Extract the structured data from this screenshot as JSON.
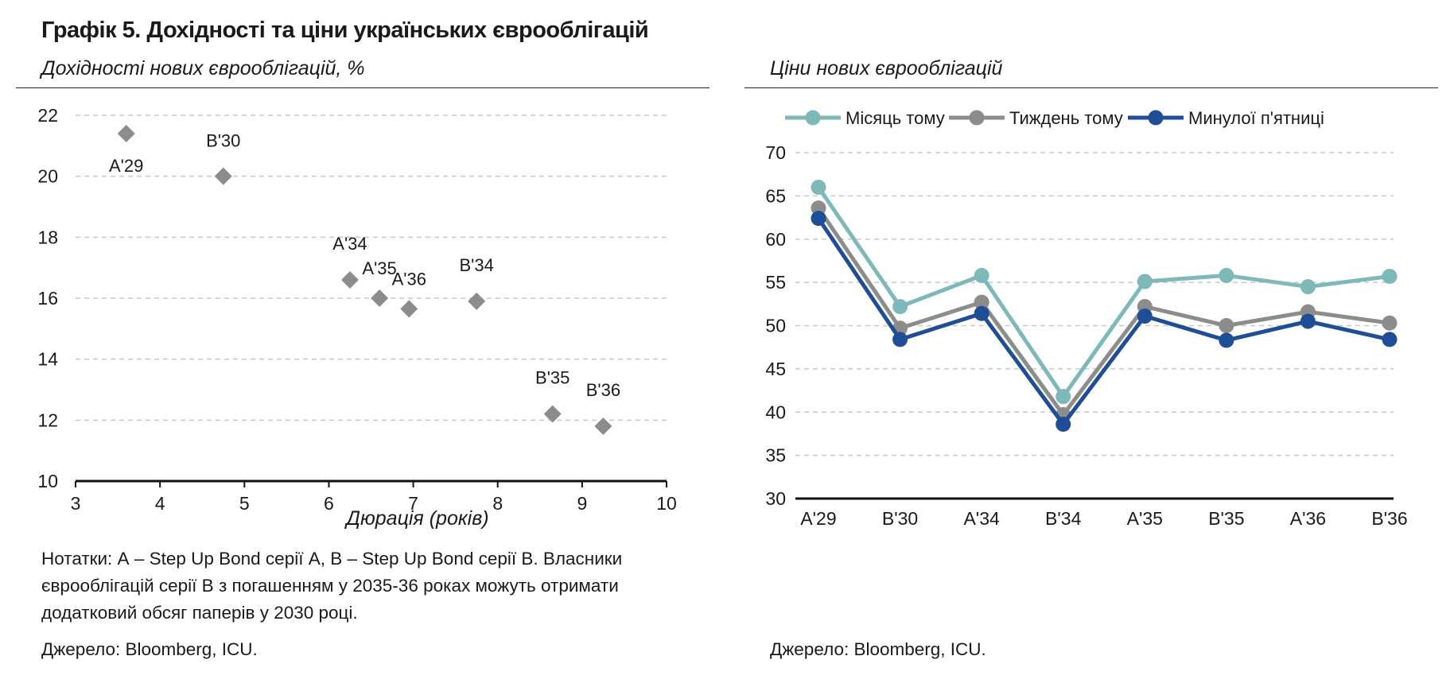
{
  "header": {
    "title": "Графік 5. Дохідності та ціни українських єврооблігацій"
  },
  "left_panel": {
    "subtitle": "Дохідності нових єврооблігацій, %",
    "notes": "Нотатки: А – Step Up Bond серії А, B – Step Up Bond серії B. Власники\nєврооблігацій серії B з погашенням у 2035-36 роках можуть отримати\nдодатковий обсяг паперів у 2030 році.",
    "source": "Джерело: Bloomberg, ICU."
  },
  "right_panel": {
    "subtitle": "Ціни нових єврооблігацій",
    "source": "Джерело: Bloomberg, ICU."
  },
  "colors": {
    "scatter_marker": "#8c8c8c",
    "month_ago": "#7fb8b8",
    "week_ago": "#8c8c8c",
    "last_friday": "#1f4e96",
    "grid": "#c8c8c8"
  },
  "chart_data": [
    {
      "type": "scatter",
      "title": "Дохідності нових єврооблігацій, %",
      "xlabel": "Дюрація (років)",
      "ylabel": "",
      "xlim": [
        3,
        10
      ],
      "ylim": [
        10,
        22
      ],
      "xticks": [
        "3",
        "4",
        "5",
        "6",
        "7",
        "8",
        "9",
        "10"
      ],
      "yticks": [
        "10",
        "12",
        "14",
        "16",
        "18",
        "20",
        "22"
      ],
      "grid": "horizontal dashed",
      "points": [
        {
          "label": "A'29",
          "x": 3.6,
          "y": 21.4
        },
        {
          "label": "B'30",
          "x": 4.75,
          "y": 20.0
        },
        {
          "label": "A'34",
          "x": 6.25,
          "y": 16.6
        },
        {
          "label": "A'35",
          "x": 6.6,
          "y": 16.0
        },
        {
          "label": "A'36",
          "x": 6.95,
          "y": 15.65
        },
        {
          "label": "B'34",
          "x": 7.75,
          "y": 15.9
        },
        {
          "label": "B'35",
          "x": 8.65,
          "y": 12.2
        },
        {
          "label": "B'36",
          "x": 9.25,
          "y": 11.8
        }
      ]
    },
    {
      "type": "line",
      "title": "Ціни нових єврооблігацій",
      "xlabel": "",
      "ylabel": "",
      "ylim": [
        30,
        70
      ],
      "yticks": [
        "30",
        "35",
        "40",
        "45",
        "50",
        "55",
        "60",
        "65",
        "70"
      ],
      "grid": "horizontal dashed",
      "legend": "top",
      "categories": [
        "A'29",
        "B'30",
        "A'34",
        "B'34",
        "A'35",
        "B'35",
        "A'36",
        "B'36"
      ],
      "series": [
        {
          "name": "Місяць тому",
          "values": [
            66.0,
            52.2,
            55.8,
            41.8,
            55.1,
            55.8,
            54.5,
            55.7
          ]
        },
        {
          "name": "Тиждень тому",
          "values": [
            63.6,
            49.7,
            52.7,
            39.7,
            52.2,
            50.0,
            51.6,
            50.3
          ]
        },
        {
          "name": "Минулої п'ятниці",
          "values": [
            62.4,
            48.4,
            51.4,
            38.6,
            51.1,
            48.3,
            50.5,
            48.4
          ]
        }
      ]
    }
  ]
}
